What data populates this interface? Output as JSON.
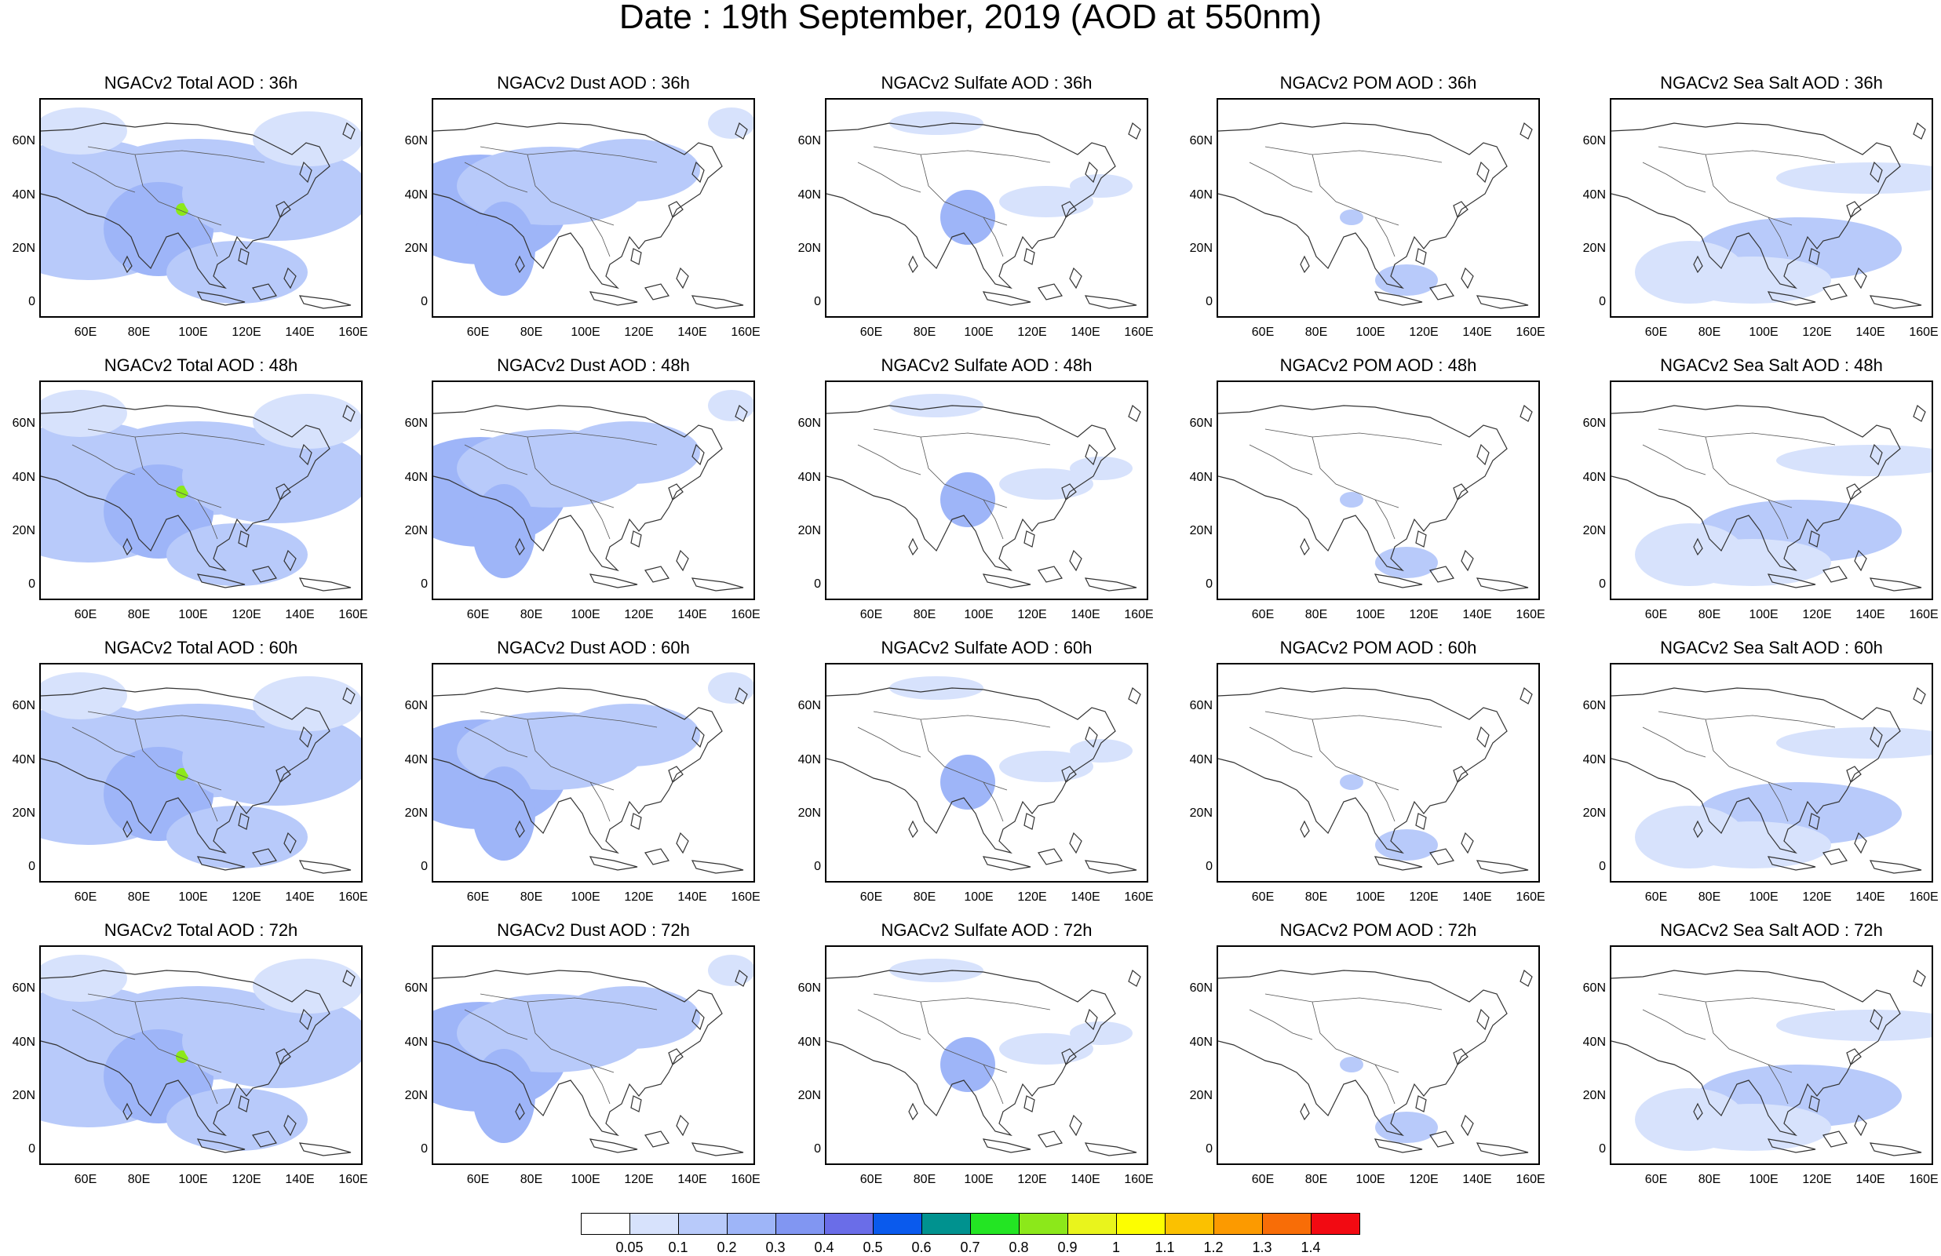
{
  "main_title": "Date : 19th September, 2019 (AOD at 550nm)",
  "panel_titles": [
    [
      "NGACv2 Total AOD : 36h",
      "NGACv2 Dust AOD : 36h",
      "NGACv2 Sulfate AOD : 36h",
      "NGACv2 POM AOD : 36h",
      "NGACv2 Sea Salt AOD : 36h"
    ],
    [
      "NGACv2 Total AOD : 48h",
      "NGACv2 Dust AOD : 48h",
      "NGACv2 Sulfate AOD : 48h",
      "NGACv2 POM AOD : 48h",
      "NGACv2 Sea Salt AOD : 48h"
    ],
    [
      "NGACv2 Total AOD : 60h",
      "NGACv2 Dust AOD : 60h",
      "NGACv2 Sulfate AOD : 60h",
      "NGACv2 POM AOD : 60h",
      "NGACv2 Sea Salt AOD : 60h"
    ],
    [
      "NGACv2 Total AOD : 72h",
      "NGACv2 Dust AOD : 72h",
      "NGACv2 Sulfate AOD : 72h",
      "NGACv2 POM AOD : 72h",
      "NGACv2 Sea Salt  AOD : 72h"
    ]
  ],
  "y_ticks": [
    "60N",
    "40N",
    "20N",
    "0"
  ],
  "x_ticks": [
    "60E",
    "80E",
    "100E",
    "120E",
    "140E",
    "160E"
  ],
  "colorbar": {
    "labels": [
      "0.05",
      "0.1",
      "0.2",
      "0.3",
      "0.4",
      "0.5",
      "0.6",
      "0.7",
      "0.8",
      "0.9",
      "1",
      "1.1",
      "1.2",
      "1.3",
      "1.4"
    ],
    "colors": [
      "#ffffff",
      "#d7e2fc",
      "#b8cafa",
      "#9eb5f8",
      "#8196f2",
      "#6a6de8",
      "#0a5aed",
      "#00928f",
      "#23e523",
      "#8ce81a",
      "#e9f41c",
      "#fdfe00",
      "#fbc100",
      "#fc9a00",
      "#f86d07",
      "#f20a12"
    ]
  }
}
